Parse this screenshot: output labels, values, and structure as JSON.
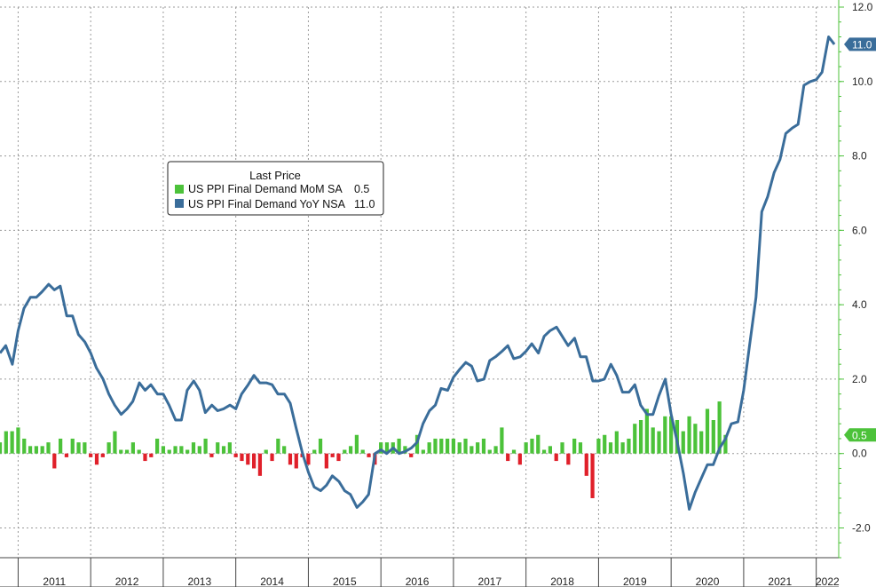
{
  "chart_data": {
    "type": "bar+line",
    "x_range": [
      2010.75,
      2022.31
    ],
    "ylim": [
      -2.8,
      12.0
    ],
    "y_ticks": [
      12.0,
      10.0,
      8.0,
      6.0,
      4.0,
      2.0,
      0.0,
      -2.0
    ],
    "y_tick_labels": [
      "12.0",
      "10.0",
      "8.0",
      "6.0",
      "4.0",
      "2.0",
      "0.0",
      "-2.0"
    ],
    "x_labels": [
      "2011",
      "2012",
      "2013",
      "2014",
      "2015",
      "2016",
      "2017",
      "2018",
      "2019",
      "2020",
      "2021",
      "2022"
    ],
    "grid": true,
    "legend": {
      "title": "Last Price",
      "placement": "upper-left",
      "entries": [
        {
          "name": "US PPI Final Demand MoM SA",
          "value": "0.5",
          "color": "#4cc23a"
        },
        {
          "name": "US PPI Final Demand YoY NSA",
          "value": "11.0",
          "color": "#3a6d9a"
        }
      ]
    },
    "last_value_badges": [
      {
        "label": "11.0",
        "value": 11.0,
        "color": "#3a6d9a"
      },
      {
        "label": "0.5",
        "value": 0.5,
        "color": "#4cc23a"
      }
    ],
    "series": [
      {
        "name": "US PPI Final Demand MoM SA",
        "kind": "bar",
        "color_positive": "#4cc23a",
        "color_negative": "#e0202a",
        "x_start": 2010.75,
        "x_step": 0.08333,
        "values": [
          0.3,
          0.6,
          0.6,
          0.7,
          0.4,
          0.2,
          0.2,
          0.2,
          0.3,
          -0.4,
          0.4,
          -0.1,
          0.4,
          0.3,
          0.3,
          -0.1,
          -0.3,
          -0.1,
          0.3,
          0.6,
          0.1,
          0.1,
          0.3,
          0.1,
          -0.2,
          -0.1,
          0.4,
          0.2,
          0.1,
          0.2,
          0.2,
          0.1,
          0.3,
          0.2,
          0.4,
          -0.1,
          0.3,
          0.2,
          0.3,
          -0.1,
          -0.2,
          -0.3,
          -0.4,
          -0.6,
          0.1,
          -0.2,
          0.4,
          0.2,
          -0.3,
          -0.4,
          -0.1,
          -0.3,
          0.1,
          0.4,
          -0.4,
          -0.1,
          -0.2,
          0.1,
          0.2,
          0.5,
          0.1,
          -0.1,
          -0.3,
          0.3,
          0.3,
          0.3,
          0.4,
          0.2,
          -0.1,
          0.5,
          0.1,
          0.3,
          0.4,
          0.4,
          0.4,
          0.4,
          0.3,
          0.4,
          0.2,
          0.3,
          0.4,
          0.1,
          0.2,
          0.7,
          -0.2,
          0.1,
          -0.3,
          0.3,
          0.4,
          0.5,
          0.1,
          0.2,
          -0.2,
          0.3,
          -0.3,
          0.4,
          0.3,
          -0.6,
          -1.2,
          0.4,
          0.5,
          0.3,
          0.6,
          0.3,
          0.4,
          0.8,
          0.9,
          1.2,
          0.7,
          0.6,
          1.0,
          1.0,
          0.9,
          0.6,
          1.0,
          0.8,
          0.6,
          1.2,
          0.9,
          1.4,
          0.5
        ]
      },
      {
        "name": "US PPI Final Demand YoY NSA",
        "kind": "line",
        "color": "#3a6d9a",
        "points": [
          [
            2010.75,
            2.7
          ],
          [
            2010.83,
            2.9
          ],
          [
            2010.92,
            2.4
          ],
          [
            2011.0,
            3.3
          ],
          [
            2011.08,
            3.9
          ],
          [
            2011.17,
            4.2
          ],
          [
            2011.25,
            4.2
          ],
          [
            2011.33,
            4.35
          ],
          [
            2011.42,
            4.55
          ],
          [
            2011.5,
            4.4
          ],
          [
            2011.58,
            4.5
          ],
          [
            2011.67,
            3.7
          ],
          [
            2011.75,
            3.7
          ],
          [
            2011.83,
            3.2
          ],
          [
            2011.92,
            3.0
          ],
          [
            2012.0,
            2.7
          ],
          [
            2012.08,
            2.3
          ],
          [
            2012.17,
            2.0
          ],
          [
            2012.25,
            1.6
          ],
          [
            2012.33,
            1.3
          ],
          [
            2012.42,
            1.05
          ],
          [
            2012.5,
            1.2
          ],
          [
            2012.58,
            1.4
          ],
          [
            2012.67,
            1.9
          ],
          [
            2012.75,
            1.7
          ],
          [
            2012.83,
            1.85
          ],
          [
            2012.92,
            1.6
          ],
          [
            2013.0,
            1.6
          ],
          [
            2013.08,
            1.3
          ],
          [
            2013.17,
            0.9
          ],
          [
            2013.25,
            0.9
          ],
          [
            2013.33,
            1.7
          ],
          [
            2013.42,
            1.95
          ],
          [
            2013.5,
            1.7
          ],
          [
            2013.58,
            1.1
          ],
          [
            2013.67,
            1.3
          ],
          [
            2013.75,
            1.15
          ],
          [
            2013.83,
            1.2
          ],
          [
            2013.92,
            1.3
          ],
          [
            2014.0,
            1.2
          ],
          [
            2014.08,
            1.6
          ],
          [
            2014.17,
            1.85
          ],
          [
            2014.25,
            2.1
          ],
          [
            2014.33,
            1.9
          ],
          [
            2014.42,
            1.9
          ],
          [
            2014.5,
            1.85
          ],
          [
            2014.58,
            1.6
          ],
          [
            2014.67,
            1.6
          ],
          [
            2014.75,
            1.35
          ],
          [
            2014.83,
            0.7
          ],
          [
            2014.92,
            0.0
          ],
          [
            2015.0,
            -0.5
          ],
          [
            2015.08,
            -0.9
          ],
          [
            2015.17,
            -1.0
          ],
          [
            2015.25,
            -0.85
          ],
          [
            2015.33,
            -0.6
          ],
          [
            2015.42,
            -0.75
          ],
          [
            2015.5,
            -1.0
          ],
          [
            2015.58,
            -1.1
          ],
          [
            2015.67,
            -1.45
          ],
          [
            2015.75,
            -1.3
          ],
          [
            2015.83,
            -1.1
          ],
          [
            2015.92,
            0.0
          ],
          [
            2016.0,
            0.1
          ],
          [
            2016.08,
            0.0
          ],
          [
            2016.17,
            0.15
          ],
          [
            2016.25,
            0.0
          ],
          [
            2016.33,
            0.05
          ],
          [
            2016.42,
            0.15
          ],
          [
            2016.5,
            0.3
          ],
          [
            2016.58,
            0.8
          ],
          [
            2016.67,
            1.15
          ],
          [
            2016.75,
            1.3
          ],
          [
            2016.83,
            1.75
          ],
          [
            2016.92,
            1.7
          ],
          [
            2017.0,
            2.05
          ],
          [
            2017.08,
            2.25
          ],
          [
            2017.17,
            2.45
          ],
          [
            2017.25,
            2.35
          ],
          [
            2017.33,
            1.95
          ],
          [
            2017.42,
            2.0
          ],
          [
            2017.5,
            2.5
          ],
          [
            2017.58,
            2.6
          ],
          [
            2017.67,
            2.75
          ],
          [
            2017.75,
            2.9
          ],
          [
            2017.83,
            2.55
          ],
          [
            2017.92,
            2.6
          ],
          [
            2018.0,
            2.75
          ],
          [
            2018.08,
            2.95
          ],
          [
            2018.17,
            2.7
          ],
          [
            2018.25,
            3.15
          ],
          [
            2018.33,
            3.3
          ],
          [
            2018.42,
            3.4
          ],
          [
            2018.5,
            3.15
          ],
          [
            2018.58,
            2.9
          ],
          [
            2018.67,
            3.1
          ],
          [
            2018.75,
            2.6
          ],
          [
            2018.83,
            2.6
          ],
          [
            2018.92,
            1.95
          ],
          [
            2019.0,
            1.95
          ],
          [
            2019.08,
            2.0
          ],
          [
            2019.17,
            2.4
          ],
          [
            2019.25,
            2.1
          ],
          [
            2019.33,
            1.65
          ],
          [
            2019.42,
            1.65
          ],
          [
            2019.5,
            1.85
          ],
          [
            2019.58,
            1.3
          ],
          [
            2019.67,
            1.05
          ],
          [
            2019.75,
            1.05
          ],
          [
            2019.83,
            1.55
          ],
          [
            2019.92,
            2.0
          ],
          [
            2020.0,
            1.05
          ],
          [
            2020.08,
            0.35
          ],
          [
            2020.17,
            -0.55
          ],
          [
            2020.25,
            -1.5
          ],
          [
            2020.33,
            -1.05
          ],
          [
            2020.42,
            -0.65
          ],
          [
            2020.5,
            -0.3
          ],
          [
            2020.58,
            -0.3
          ],
          [
            2020.67,
            0.15
          ],
          [
            2020.75,
            0.4
          ],
          [
            2020.83,
            0.8
          ],
          [
            2020.92,
            0.85
          ],
          [
            2021.0,
            1.7
          ],
          [
            2021.08,
            2.9
          ],
          [
            2021.17,
            4.2
          ],
          [
            2021.25,
            6.5
          ],
          [
            2021.33,
            6.9
          ],
          [
            2021.42,
            7.55
          ],
          [
            2021.5,
            7.9
          ],
          [
            2021.58,
            8.6
          ],
          [
            2021.67,
            8.75
          ],
          [
            2021.75,
            8.85
          ],
          [
            2021.83,
            9.9
          ],
          [
            2021.92,
            10.0
          ],
          [
            2022.0,
            10.05
          ],
          [
            2022.08,
            10.25
          ],
          [
            2022.17,
            11.2
          ],
          [
            2022.25,
            11.0
          ]
        ]
      }
    ]
  }
}
